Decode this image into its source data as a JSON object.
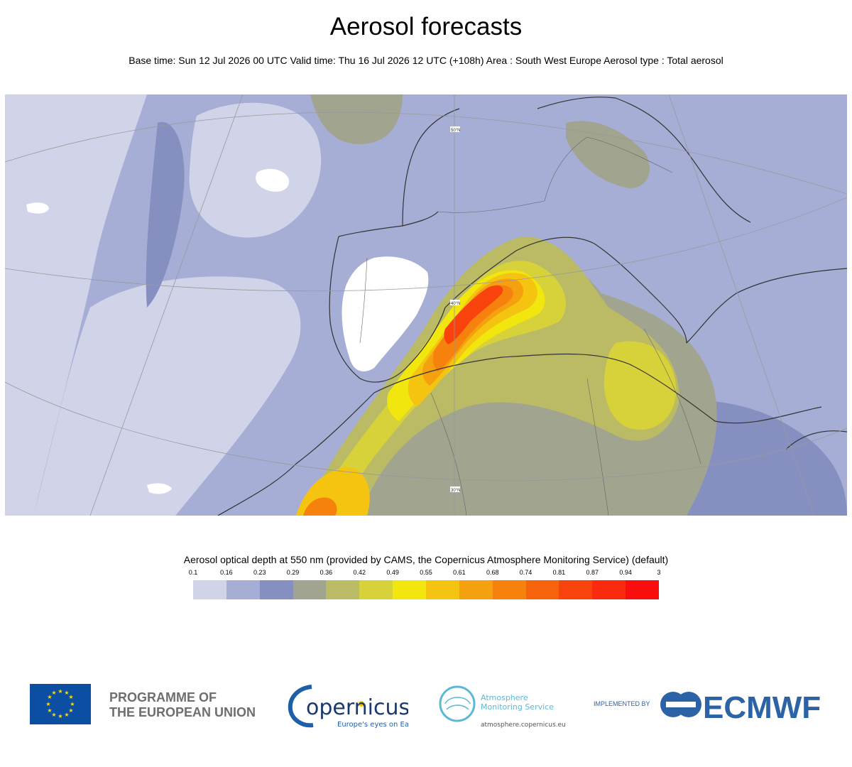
{
  "header": {
    "title": "Aerosol forecasts",
    "subtitle": "Base time: Sun 12 Jul 2026 00 UTC Valid time: Thu 16 Jul 2026 12 UTC (+108h) Area : South West Europe Aerosol type : Total aerosol"
  },
  "legend": {
    "title": "Aerosol optical depth at 550 nm (provided by CAMS, the Copernicus Atmosphere Monitoring Service) (default)",
    "ticks": [
      "0.1",
      "0.16",
      "0.23",
      "0.29",
      "0.36",
      "0.42",
      "0.49",
      "0.55",
      "0.61",
      "0.68",
      "0.74",
      "0.81",
      "0.87",
      "0.94",
      "3"
    ],
    "colors": [
      "#d1d4e8",
      "#a6aed6",
      "#8690c0",
      "#a1a48f",
      "#bbbb66",
      "#d8d23a",
      "#f2e60f",
      "#f5c410",
      "#f5a00f",
      "#f6820d",
      "#f7620c",
      "#f8430d",
      "#f92a0d",
      "#fa0d0d"
    ]
  },
  "map": {
    "grid_labels": [
      "50°N",
      "40°N",
      "30°N"
    ],
    "land_color": "#ffffff",
    "coast_color": "#333333"
  },
  "footer": {
    "programme_line1": "PROGRAMME OF",
    "programme_line2": "THE EUROPEAN UNION",
    "copernicus_name": "opernicus",
    "copernicus_tagline": "Europe's eyes on Earth",
    "cams_line1": "Atmosphere",
    "cams_line2": "Monitoring Service",
    "cams_url": "atmosphere.copernicus.eu",
    "implemented_by": "IMPLEMENTED BY",
    "ecmwf": "ECMWF"
  }
}
